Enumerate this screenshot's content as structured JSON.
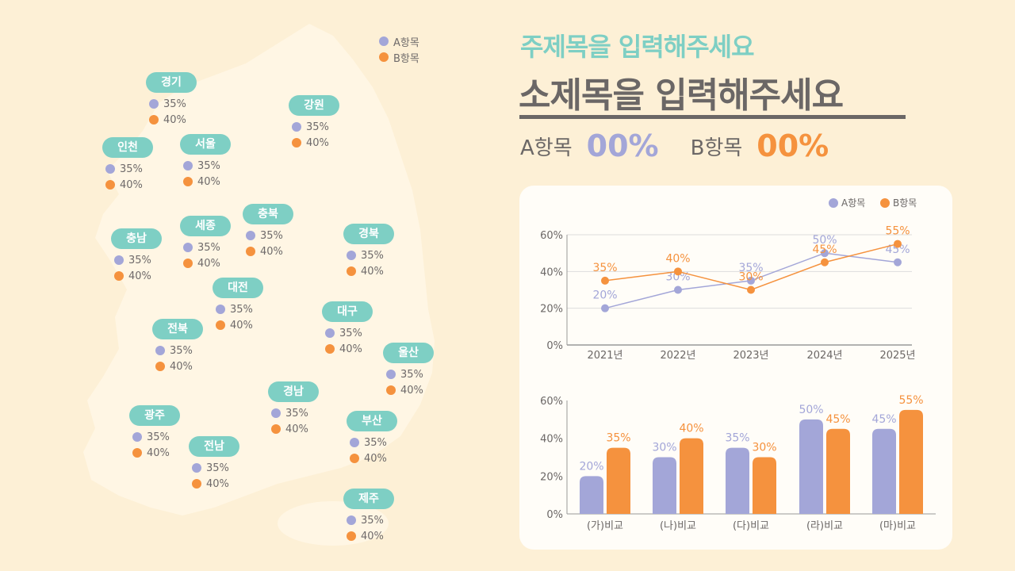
{
  "title": "주제목을 입력해주세요",
  "subtitle": "소제목을 입력해주세요",
  "summary": {
    "a_label": "A항목",
    "a_value": "00%",
    "b_label": "B항목",
    "b_value": "00%"
  },
  "colors": {
    "a": "#a3a6d8",
    "b": "#f5923e",
    "pill": "#7ecfc4",
    "text": "#6b6766"
  },
  "legend": {
    "a": "A항목",
    "b": "B항목"
  },
  "regions": [
    {
      "name": "경기",
      "a": "35%",
      "b": "40%"
    },
    {
      "name": "강원",
      "a": "35%",
      "b": "40%"
    },
    {
      "name": "인천",
      "a": "35%",
      "b": "40%"
    },
    {
      "name": "서울",
      "a": "35%",
      "b": "40%"
    },
    {
      "name": "충북",
      "a": "35%",
      "b": "40%"
    },
    {
      "name": "경북",
      "a": "35%",
      "b": "40%"
    },
    {
      "name": "충남",
      "a": "35%",
      "b": "40%"
    },
    {
      "name": "세종",
      "a": "35%",
      "b": "40%"
    },
    {
      "name": "대전",
      "a": "35%",
      "b": "40%"
    },
    {
      "name": "대구",
      "a": "35%",
      "b": "40%"
    },
    {
      "name": "전북",
      "a": "35%",
      "b": "40%"
    },
    {
      "name": "울산",
      "a": "35%",
      "b": "40%"
    },
    {
      "name": "경남",
      "a": "35%",
      "b": "40%"
    },
    {
      "name": "부산",
      "a": "35%",
      "b": "40%"
    },
    {
      "name": "광주",
      "a": "35%",
      "b": "40%"
    },
    {
      "name": "전남",
      "a": "35%",
      "b": "40%"
    },
    {
      "name": "제주",
      "a": "35%",
      "b": "40%"
    }
  ],
  "chart_data": [
    {
      "type": "line",
      "categories": [
        "2021년",
        "2022년",
        "2023년",
        "2024년",
        "2025년"
      ],
      "series": [
        {
          "name": "A항목",
          "values": [
            20,
            30,
            35,
            50,
            45
          ]
        },
        {
          "name": "B항목",
          "values": [
            35,
            40,
            30,
            45,
            55
          ]
        }
      ],
      "ylim": [
        0,
        60
      ],
      "yticks": [
        "0%",
        "20%",
        "40%",
        "60%"
      ],
      "grid": true,
      "legend": "top-right"
    },
    {
      "type": "bar",
      "categories": [
        "(가)비교",
        "(나)비교",
        "(다)비교",
        "(라)비교",
        "(마)비교"
      ],
      "series": [
        {
          "name": "A항목",
          "values": [
            20,
            30,
            35,
            50,
            45
          ]
        },
        {
          "name": "B항목",
          "values": [
            35,
            40,
            30,
            45,
            55
          ]
        }
      ],
      "ylim": [
        0,
        60
      ],
      "yticks": [
        "0%",
        "20%",
        "40%",
        "60%"
      ],
      "grid": false
    }
  ]
}
